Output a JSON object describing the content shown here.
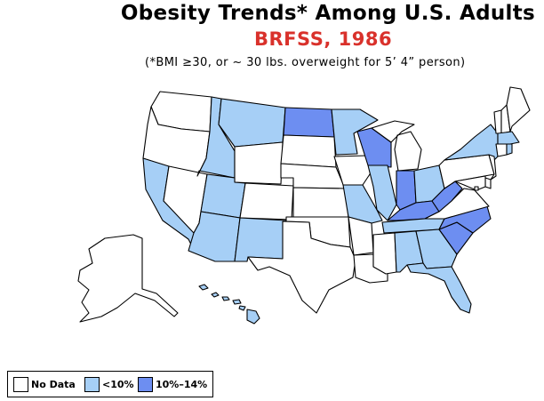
{
  "title": "Obesity Trends*  Among U.S. Adults",
  "subtitle": "BRFSS, 1986",
  "footnote": "(*BMI ≥30, or ~ 30 lbs. overweight for 5’ 4” person)",
  "legend": [
    {
      "key": "none",
      "label": "No Data",
      "color": "#ffffff"
    },
    {
      "key": "low",
      "label": "<10%",
      "color": "#a6cff6"
    },
    {
      "key": "mid",
      "label": "10%–14%",
      "color": "#6d8ef1"
    }
  ],
  "state_categories": {
    "WA": "none",
    "OR": "none",
    "CA": "low",
    "NV": "none",
    "ID": "low",
    "MT": "low",
    "WY": "none",
    "UT": "low",
    "AZ": "low",
    "CO": "none",
    "NM": "low",
    "ND": "mid",
    "SD": "none",
    "NE": "none",
    "KS": "none",
    "OK": "none",
    "TX": "none",
    "MN": "low",
    "IA": "none",
    "MO": "low",
    "AR": "none",
    "LA": "none",
    "WI": "mid",
    "IL": "low",
    "MI": "none",
    "IN": "mid",
    "OH": "low",
    "KY": "mid",
    "TN": "low",
    "MS": "none",
    "AL": "low",
    "GA": "low",
    "FL": "low",
    "SC": "mid",
    "NC": "mid",
    "VA": "none",
    "WV": "mid",
    "PA": "none",
    "NY": "low",
    "VT": "none",
    "NH": "none",
    "ME": "none",
    "MA": "low",
    "CT": "none",
    "RI": "low",
    "NJ": "none",
    "DE": "none",
    "MD": "none",
    "DC": "none",
    "AK": "none",
    "HI": "low"
  }
}
